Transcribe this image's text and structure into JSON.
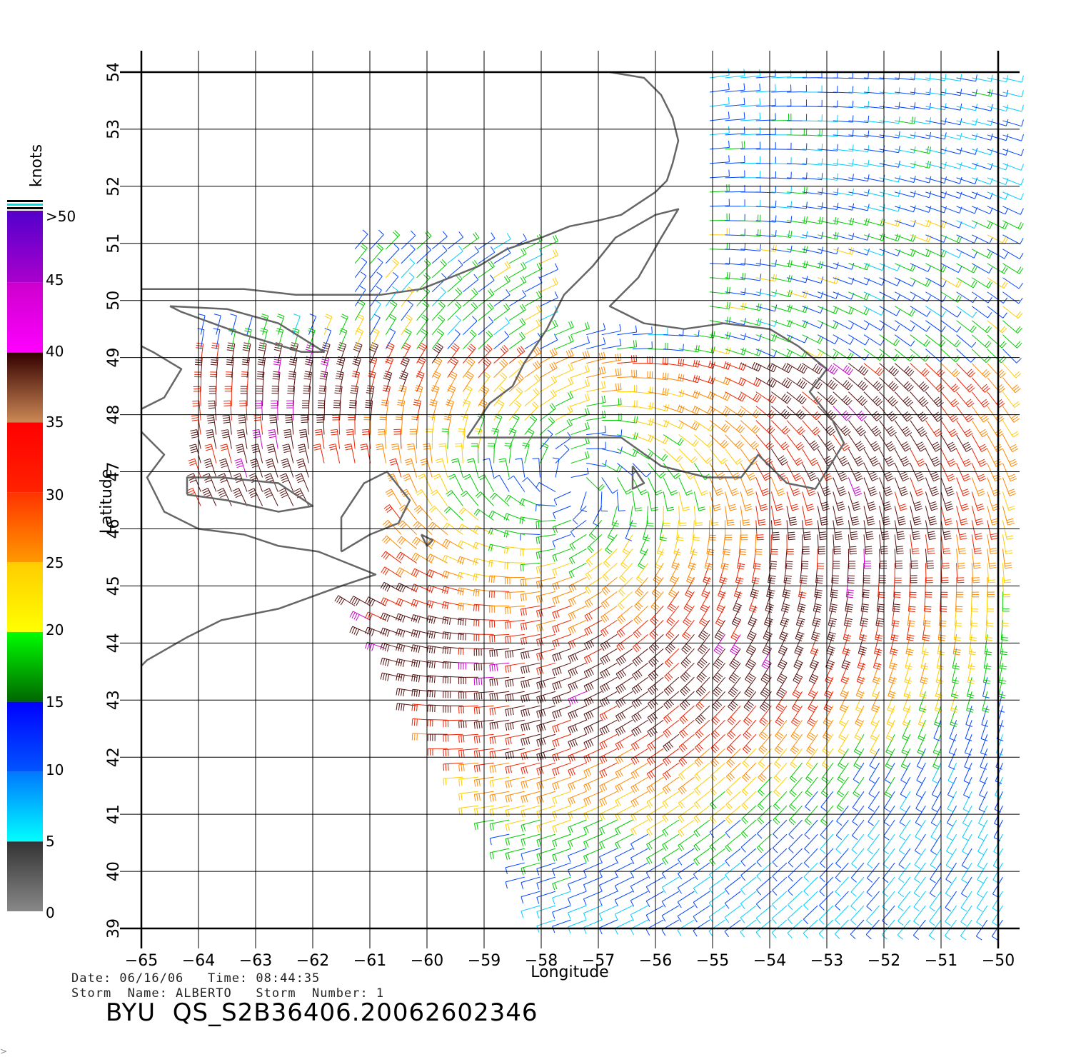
{
  "map": {
    "x_axis": {
      "title": "Longitude",
      "min": -65,
      "max": -50,
      "ticks": [
        -65,
        -64,
        -63,
        -62,
        -61,
        -60,
        -59,
        -58,
        -57,
        -56,
        -55,
        -54,
        -53,
        -52,
        -51,
        -50
      ],
      "tick_labels": [
        "−65",
        "−64",
        "−63",
        "−62",
        "−61",
        "−60",
        "−59",
        "−58",
        "−57",
        "−56",
        "−55",
        "−54",
        "−53",
        "−52",
        "−51",
        "−50"
      ]
    },
    "y_axis": {
      "title": "Latitude",
      "min": 39,
      "max": 54,
      "ticks": [
        39,
        40,
        41,
        42,
        43,
        44,
        45,
        46,
        47,
        48,
        49,
        50,
        51,
        52,
        53,
        54
      ],
      "tick_labels": [
        "39",
        "40",
        "41",
        "42",
        "43",
        "44",
        "45",
        "46",
        "47",
        "48",
        "49",
        "50",
        "51",
        "52",
        "53",
        "54"
      ]
    },
    "grid": true,
    "coastline_color": "#666666",
    "wind_field": {
      "storm_center": [
        -57.5,
        46.8
      ],
      "description_free": true
    }
  },
  "legend": {
    "unit": "knots",
    "labels": [
      ">50",
      "45",
      "40",
      "35",
      "30",
      "25",
      "20",
      "15",
      "10",
      "5",
      "0"
    ],
    "bands": [
      {
        "from": 0,
        "to": 5,
        "top": "#333333",
        "bottom": "#888888"
      },
      {
        "from": 5,
        "to": 10,
        "top": "#0077ff",
        "bottom": "#00ffff"
      },
      {
        "from": 10,
        "to": 15,
        "top": "#0000ff",
        "bottom": "#0055ff"
      },
      {
        "from": 15,
        "to": 20,
        "top": "#00ff00",
        "bottom": "#006600"
      },
      {
        "from": 20,
        "to": 25,
        "top": "#ffcc00",
        "bottom": "#ffff00"
      },
      {
        "from": 25,
        "to": 30,
        "top": "#ff3300",
        "bottom": "#ff9900"
      },
      {
        "from": 30,
        "to": 35,
        "top": "#ff0000",
        "bottom": "#ff2200"
      },
      {
        "from": 35,
        "to": 40,
        "top": "#330000",
        "bottom": "#cc8855"
      },
      {
        "from": 40,
        "to": 45,
        "top": "#cc00cc",
        "bottom": "#ff00ff"
      },
      {
        "from": 45,
        "to": 50,
        "top": "#5500cc",
        "bottom": "#aa00cc"
      }
    ]
  },
  "info": {
    "line1": "Date: 06/16/06   Time: 08:44:35",
    "line2": "Storm  Name: ALBERTO   Storm  Number: 1"
  },
  "footer": {
    "title": "BYU  QS_S2B36406.20062602346"
  },
  "corner_mark": ">"
}
